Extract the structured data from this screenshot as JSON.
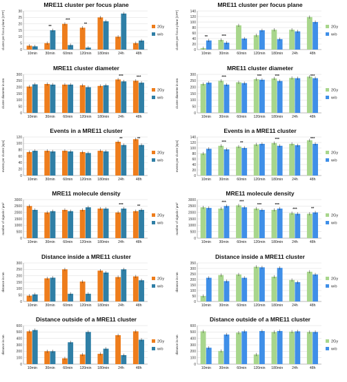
{
  "panels": [
    {
      "title": "MRE11 cluster per focus plane",
      "ylabel": "cluster per focus plane [CPF]",
      "chart_data": {
        "type": "bar",
        "categories": [
          "10min",
          "30min",
          "60min",
          "120min",
          "180min",
          "24h",
          "48h"
        ],
        "ylim": [
          0,
          30
        ],
        "yticks": [
          0,
          5,
          10,
          15,
          20,
          25,
          30
        ],
        "series": [
          {
            "name": "2Gy",
            "values": [
              3,
              5,
              20,
              17,
              25,
              10,
              5
            ]
          },
          {
            "name": "w/o",
            "values": [
              2.5,
              15,
              3.5,
              1.5,
              22,
              28,
              7
            ]
          }
        ],
        "annotations": [
          {
            "category": 1,
            "text": "**"
          },
          {
            "category": 2,
            "text": "***"
          },
          {
            "category": 3,
            "text": "**"
          }
        ],
        "palette": [
          "#ee7d1c",
          "#2f7fa6"
        ]
      }
    },
    {
      "title": "MRE11 cluster per focus plane",
      "ylabel": "cluster per focus plane [CPF]",
      "chart_data": {
        "type": "bar",
        "categories": [
          "10min",
          "30min",
          "60min",
          "120min",
          "180min",
          "24h",
          "48h"
        ],
        "ylim": [
          0,
          140
        ],
        "yticks": [
          0,
          20,
          40,
          60,
          80,
          100,
          120,
          140
        ],
        "series": [
          {
            "name": "2Gy",
            "values": [
              5,
              35,
              88,
              52,
              72,
              72,
              118
            ]
          },
          {
            "name": "w/o",
            "values": [
              33,
              25,
              40,
              70,
              38,
              66,
              100
            ]
          }
        ],
        "annotations": [
          {
            "category": 0,
            "text": "**"
          },
          {
            "category": 1,
            "text": "***"
          }
        ],
        "palette": [
          "#a8d68c",
          "#3f8fe8"
        ]
      }
    },
    {
      "title": "MRE11 cluster diameter",
      "ylabel": "cluster diameter in nm",
      "chart_data": {
        "type": "bar",
        "categories": [
          "10min",
          "30min",
          "60min",
          "120min",
          "180min",
          "24h",
          "48h"
        ],
        "ylim": [
          0,
          300
        ],
        "yticks": [
          0,
          50,
          100,
          150,
          200,
          250,
          300
        ],
        "series": [
          {
            "name": "2Gy",
            "values": [
              205,
              225,
              220,
              215,
              210,
              260,
              250
            ]
          },
          {
            "name": "w/o",
            "values": [
              222,
              220,
              220,
              200,
              215,
              245,
              235
            ]
          }
        ],
        "annotations": [
          {
            "category": 5,
            "text": "***"
          },
          {
            "category": 6,
            "text": "***"
          }
        ],
        "palette": [
          "#ee7d1c",
          "#2f7fa6"
        ]
      }
    },
    {
      "title": "MRE11 cluster diameter",
      "ylabel": "cluster diameter in nm",
      "chart_data": {
        "type": "bar",
        "categories": [
          "10min",
          "30min",
          "60min",
          "120min",
          "180min",
          "24h",
          "48h"
        ],
        "ylim": [
          0,
          300
        ],
        "yticks": [
          0,
          50,
          100,
          150,
          200,
          250,
          300
        ],
        "series": [
          {
            "name": "2Gy",
            "values": [
              225,
              250,
              238,
              262,
              268,
              272,
              282
            ]
          },
          {
            "name": "w/o",
            "values": [
              235,
              220,
              232,
              258,
              248,
              270,
              270
            ]
          }
        ],
        "annotations": [
          {
            "category": 1,
            "text": "***"
          },
          {
            "category": 3,
            "text": "***"
          },
          {
            "category": 4,
            "text": "***"
          },
          {
            "category": 6,
            "text": "***"
          }
        ],
        "palette": [
          "#a8d68c",
          "#3f8fe8"
        ]
      }
    },
    {
      "title": "Events in a MRE11 cluster",
      "ylabel": "events per cluster [eps]",
      "chart_data": {
        "type": "bar",
        "categories": [
          "10min",
          "30min",
          "60min",
          "120min",
          "180min",
          "24h",
          "48h"
        ],
        "ylim": [
          0,
          120
        ],
        "yticks": [
          0,
          20,
          40,
          60,
          80,
          100,
          120
        ],
        "series": [
          {
            "name": "2Gy",
            "values": [
              73,
              77,
              77,
              73,
              77,
              105,
              113
            ]
          },
          {
            "name": "w/o",
            "values": [
              77,
              75,
              75,
              70,
              75,
              95,
              95
            ]
          }
        ],
        "annotations": [
          {
            "category": 5,
            "text": "**"
          },
          {
            "category": 6,
            "text": "**"
          }
        ],
        "palette": [
          "#ee7d1c",
          "#2f7fa6"
        ]
      }
    },
    {
      "title": "Events in a MRE11 cluster",
      "ylabel": "events per cluster [eps]",
      "chart_data": {
        "type": "bar",
        "categories": [
          "10min",
          "30min",
          "60min",
          "120min",
          "180min",
          "24h",
          "48h"
        ],
        "ylim": [
          0,
          140
        ],
        "yticks": [
          0,
          20,
          40,
          60,
          80,
          100,
          120,
          140
        ],
        "series": [
          {
            "name": "2Gy",
            "values": [
              80,
              108,
              105,
              113,
              118,
              115,
              128
            ]
          },
          {
            "name": "w/o",
            "values": [
              97,
              95,
              100,
              115,
              108,
              110,
              115
            ]
          }
        ],
        "annotations": [
          {
            "category": 1,
            "text": "***"
          },
          {
            "category": 2,
            "text": "**"
          },
          {
            "category": 4,
            "text": "***"
          },
          {
            "category": 6,
            "text": "***"
          }
        ],
        "palette": [
          "#a8d68c",
          "#3f8fe8"
        ]
      }
    },
    {
      "title": "MRE11 molecule density",
      "ylabel": "number of signals / µm²",
      "chart_data": {
        "type": "bar",
        "categories": [
          "10min",
          "30min",
          "60min",
          "120min",
          "180min",
          "24h",
          "48h"
        ],
        "ylim": [
          0,
          3000
        ],
        "yticks": [
          0,
          500,
          1000,
          1500,
          2000,
          2500,
          3000
        ],
        "series": [
          {
            "name": "2Gy",
            "values": [
              2500,
              2000,
              2200,
              2200,
              2300,
              2000,
              2100
            ]
          },
          {
            "name": "w/o",
            "values": [
              2200,
              2100,
              2100,
              2400,
              2300,
              2300,
              2200
            ]
          }
        ],
        "annotations": [
          {
            "category": 5,
            "text": "***"
          },
          {
            "category": 6,
            "text": "**"
          }
        ],
        "palette": [
          "#ee7d1c",
          "#2f7fa6"
        ]
      }
    },
    {
      "title": "MRE11 molecule density",
      "ylabel": "number of signals / µm²",
      "chart_data": {
        "type": "bar",
        "categories": [
          "10min",
          "30min",
          "60min",
          "120min",
          "180min",
          "24h",
          "48h"
        ],
        "ylim": [
          0,
          3000
        ],
        "yticks": [
          0,
          500,
          1000,
          1500,
          2000,
          2500,
          3000
        ],
        "series": [
          {
            "name": "2Gy",
            "values": [
              2400,
              2300,
              2550,
              2300,
              2200,
              1950,
              1900
            ]
          },
          {
            "name": "w/o",
            "values": [
              2350,
              2500,
              2400,
              2200,
              2300,
              1900,
              2000
            ]
          }
        ],
        "annotations": [
          {
            "category": 1,
            "text": "***"
          },
          {
            "category": 2,
            "text": "***"
          },
          {
            "category": 3,
            "text": "***"
          },
          {
            "category": 4,
            "text": "***"
          },
          {
            "category": 5,
            "text": "***"
          },
          {
            "category": 6,
            "text": "**"
          }
        ],
        "palette": [
          "#a8d68c",
          "#3f8fe8"
        ]
      }
    },
    {
      "title": "Distance inside a MRE11 cluster",
      "ylabel": "distance in nm",
      "chart_data": {
        "type": "bar",
        "categories": [
          "10min",
          "30min",
          "60min",
          "120min",
          "180min",
          "24h",
          "48h"
        ],
        "ylim": [
          0,
          300
        ],
        "yticks": [
          0,
          50,
          100,
          150,
          200,
          250,
          300
        ],
        "series": [
          {
            "name": "2Gy",
            "values": [
              45,
              180,
              250,
              155,
              240,
              190,
              195
            ]
          },
          {
            "name": "w/o",
            "values": [
              55,
              185,
              60,
              60,
              225,
              250,
              165
            ]
          }
        ],
        "annotations": [],
        "palette": [
          "#ee7d1c",
          "#2f7fa6"
        ]
      }
    },
    {
      "title": "Distance inside a MRE11 cluster",
      "ylabel": "distance in nm",
      "chart_data": {
        "type": "bar",
        "categories": [
          "10min",
          "30min",
          "60min",
          "120min",
          "180min",
          "24h",
          "48h"
        ],
        "ylim": [
          0,
          350
        ],
        "yticks": [
          0,
          50,
          100,
          150,
          200,
          250,
          300,
          350
        ],
        "series": [
          {
            "name": "2Gy",
            "values": [
              50,
              240,
              245,
              315,
              225,
              195,
              270
            ]
          },
          {
            "name": "w/o",
            "values": [
              215,
              185,
              215,
              310,
              305,
              175,
              245
            ]
          }
        ],
        "annotations": [],
        "palette": [
          "#a8d68c",
          "#3f8fe8"
        ]
      }
    },
    {
      "title": "Distance outside of a MRE11 cluster",
      "ylabel": "distance in nm",
      "chart_data": {
        "type": "bar",
        "categories": [
          "10min",
          "30min",
          "60min",
          "120min",
          "180min",
          "24h",
          "48h"
        ],
        "ylim": [
          0,
          600
        ],
        "yticks": [
          0,
          100,
          200,
          300,
          400,
          500,
          600
        ],
        "series": [
          {
            "name": "2Gy",
            "values": [
              510,
              200,
              90,
              150,
              160,
              450,
              510
            ]
          },
          {
            "name": "w/o",
            "values": [
              530,
              200,
              340,
              500,
              240,
              140,
              380
            ]
          }
        ],
        "annotations": [],
        "palette": [
          "#ee7d1c",
          "#2f7fa6"
        ]
      }
    },
    {
      "title": "Distance outside of a MRE11 cluster",
      "ylabel": "distance in nm",
      "chart_data": {
        "type": "bar",
        "categories": [
          "10min",
          "30min",
          "60min",
          "120min",
          "180min",
          "24h",
          "48h"
        ],
        "ylim": [
          0,
          600
        ],
        "yticks": [
          0,
          100,
          200,
          300,
          400,
          500,
          600
        ],
        "series": [
          {
            "name": "2Gy",
            "values": [
              510,
              205,
              490,
              150,
              500,
              505,
              500
            ]
          },
          {
            "name": "w/o",
            "values": [
              255,
              460,
              510,
              515,
              515,
              510,
              500
            ]
          }
        ],
        "annotations": [],
        "palette": [
          "#a8d68c",
          "#3f8fe8"
        ]
      }
    }
  ]
}
